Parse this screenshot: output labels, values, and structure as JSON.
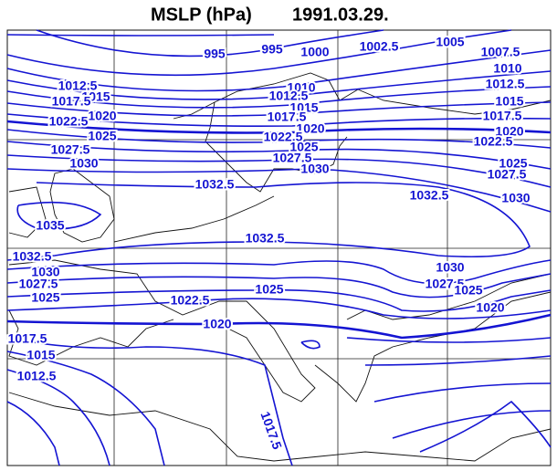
{
  "header": {
    "title": "MSLP (hPa)",
    "date": "1991.03.29."
  },
  "labels": [
    "995",
    "995",
    "1000",
    "1002.5",
    "1005",
    "1007.5",
    "1010",
    "1012.5",
    "1015",
    "1017.5",
    "1020",
    "1022.5",
    "1025",
    "1027.5",
    "1030",
    "1012.5",
    "1015",
    "1017.5",
    "1020",
    "1022.5",
    "1025",
    "1027.5",
    "1030",
    "1032.5",
    "1035",
    "1010",
    "1012.5",
    "1015",
    "1017.5",
    "1020",
    "1022.5",
    "1025",
    "1027.5",
    "1030",
    "1032.5",
    "1032.5",
    "1032.5",
    "1030",
    "1027.5",
    "1025",
    "1022.5",
    "1025",
    "1030",
    "1027.5",
    "1025",
    "1020",
    "1020",
    "1017.5",
    "1015",
    "1012.5",
    "1017.5"
  ]
}
